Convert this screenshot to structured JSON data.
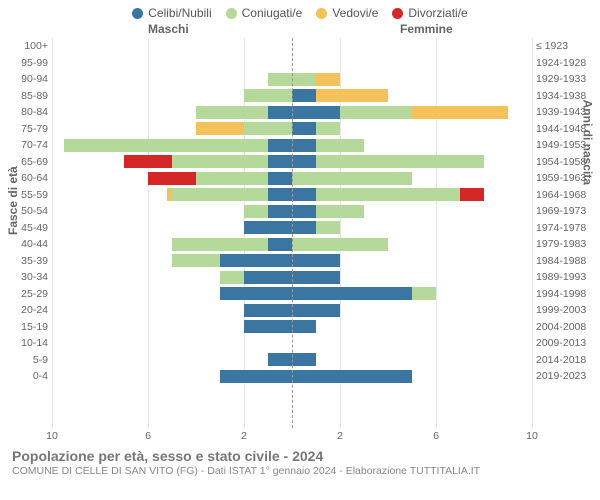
{
  "legend": [
    {
      "label": "Celibi/Nubili",
      "color": "#3b76a3"
    },
    {
      "label": "Coniugati/e",
      "color": "#b4d99a"
    },
    {
      "label": "Vedovi/e",
      "color": "#f4c15a"
    },
    {
      "label": "Divorziati/e",
      "color": "#d62728"
    }
  ],
  "axis": {
    "left_label": "Fasce di età",
    "right_label": "Anni di nascita",
    "male_header": "Maschi",
    "female_header": "Femmine",
    "xmax": 10,
    "xticks": [
      10,
      6,
      2,
      2,
      6,
      10
    ]
  },
  "colors": {
    "grid": "#e6e6e6",
    "center_dash": "#999999",
    "text": "#666666",
    "background": "#ffffff"
  },
  "title": "Popolazione per età, sesso e stato civile - 2024",
  "subtitle": "COMUNE DI CELLE DI SAN VITO (FG) - Dati ISTAT 1° gennaio 2024 - Elaborazione TUTTITALIA.IT",
  "rows": [
    {
      "age": "100+",
      "birth": "≤ 1923",
      "m": {
        "cel": 0,
        "con": 0,
        "ved": 0,
        "div": 0
      },
      "f": {
        "cel": 0,
        "con": 0,
        "ved": 0,
        "div": 0
      }
    },
    {
      "age": "95-99",
      "birth": "1924-1928",
      "m": {
        "cel": 0,
        "con": 0,
        "ved": 0,
        "div": 0
      },
      "f": {
        "cel": 0,
        "con": 0,
        "ved": 0,
        "div": 0
      }
    },
    {
      "age": "90-94",
      "birth": "1929-1933",
      "m": {
        "cel": 0,
        "con": 1,
        "ved": 0,
        "div": 0
      },
      "f": {
        "cel": 0,
        "con": 1,
        "ved": 1,
        "div": 0
      }
    },
    {
      "age": "85-89",
      "birth": "1934-1938",
      "m": {
        "cel": 0,
        "con": 2,
        "ved": 0,
        "div": 0
      },
      "f": {
        "cel": 1,
        "con": 0,
        "ved": 3,
        "div": 0
      }
    },
    {
      "age": "80-84",
      "birth": "1939-1943",
      "m": {
        "cel": 1,
        "con": 3,
        "ved": 0,
        "div": 0
      },
      "f": {
        "cel": 2,
        "con": 3,
        "ved": 4,
        "div": 0
      }
    },
    {
      "age": "75-79",
      "birth": "1944-1948",
      "m": {
        "cel": 0,
        "con": 2,
        "ved": 2,
        "div": 0
      },
      "f": {
        "cel": 1,
        "con": 1,
        "ved": 0,
        "div": 0
      }
    },
    {
      "age": "70-74",
      "birth": "1949-1953",
      "m": {
        "cel": 1,
        "con": 8.5,
        "ved": 0,
        "div": 0
      },
      "f": {
        "cel": 1,
        "con": 2,
        "ved": 0,
        "div": 0
      }
    },
    {
      "age": "65-69",
      "birth": "1954-1958",
      "m": {
        "cel": 1,
        "con": 4,
        "ved": 0,
        "div": 2
      },
      "f": {
        "cel": 1,
        "con": 7,
        "ved": 0,
        "div": 0
      }
    },
    {
      "age": "60-64",
      "birth": "1959-1963",
      "m": {
        "cel": 1,
        "con": 3,
        "ved": 0,
        "div": 2
      },
      "f": {
        "cel": 0,
        "con": 5,
        "ved": 0,
        "div": 0
      }
    },
    {
      "age": "55-59",
      "birth": "1964-1968",
      "m": {
        "cel": 1,
        "con": 4,
        "ved": 0.2,
        "div": 0
      },
      "f": {
        "cel": 1,
        "con": 6,
        "ved": 0,
        "div": 1
      }
    },
    {
      "age": "50-54",
      "birth": "1969-1973",
      "m": {
        "cel": 1,
        "con": 1,
        "ved": 0,
        "div": 0
      },
      "f": {
        "cel": 1,
        "con": 2,
        "ved": 0,
        "div": 0
      }
    },
    {
      "age": "45-49",
      "birth": "1974-1978",
      "m": {
        "cel": 2,
        "con": 0,
        "ved": 0,
        "div": 0
      },
      "f": {
        "cel": 1,
        "con": 1,
        "ved": 0,
        "div": 0
      }
    },
    {
      "age": "40-44",
      "birth": "1979-1983",
      "m": {
        "cel": 1,
        "con": 4,
        "ved": 0,
        "div": 0
      },
      "f": {
        "cel": 0,
        "con": 4,
        "ved": 0,
        "div": 0
      }
    },
    {
      "age": "35-39",
      "birth": "1984-1988",
      "m": {
        "cel": 3,
        "con": 2,
        "ved": 0,
        "div": 0
      },
      "f": {
        "cel": 2,
        "con": 0,
        "ved": 0,
        "div": 0
      }
    },
    {
      "age": "30-34",
      "birth": "1989-1993",
      "m": {
        "cel": 2,
        "con": 1,
        "ved": 0,
        "div": 0
      },
      "f": {
        "cel": 2,
        "con": 0,
        "ved": 0,
        "div": 0
      }
    },
    {
      "age": "25-29",
      "birth": "1994-1998",
      "m": {
        "cel": 3,
        "con": 0,
        "ved": 0,
        "div": 0
      },
      "f": {
        "cel": 5,
        "con": 1,
        "ved": 0,
        "div": 0
      }
    },
    {
      "age": "20-24",
      "birth": "1999-2003",
      "m": {
        "cel": 2,
        "con": 0,
        "ved": 0,
        "div": 0
      },
      "f": {
        "cel": 2,
        "con": 0,
        "ved": 0,
        "div": 0
      }
    },
    {
      "age": "15-19",
      "birth": "2004-2008",
      "m": {
        "cel": 2,
        "con": 0,
        "ved": 0,
        "div": 0
      },
      "f": {
        "cel": 1,
        "con": 0,
        "ved": 0,
        "div": 0
      }
    },
    {
      "age": "10-14",
      "birth": "2009-2013",
      "m": {
        "cel": 0,
        "con": 0,
        "ved": 0,
        "div": 0
      },
      "f": {
        "cel": 0,
        "con": 0,
        "ved": 0,
        "div": 0
      }
    },
    {
      "age": "5-9",
      "birth": "2014-2018",
      "m": {
        "cel": 1,
        "con": 0,
        "ved": 0,
        "div": 0
      },
      "f": {
        "cel": 1,
        "con": 0,
        "ved": 0,
        "div": 0
      }
    },
    {
      "age": "0-4",
      "birth": "2019-2023",
      "m": {
        "cel": 3,
        "con": 0,
        "ved": 0,
        "div": 0
      },
      "f": {
        "cel": 5,
        "con": 0,
        "ved": 0,
        "div": 0
      }
    }
  ]
}
